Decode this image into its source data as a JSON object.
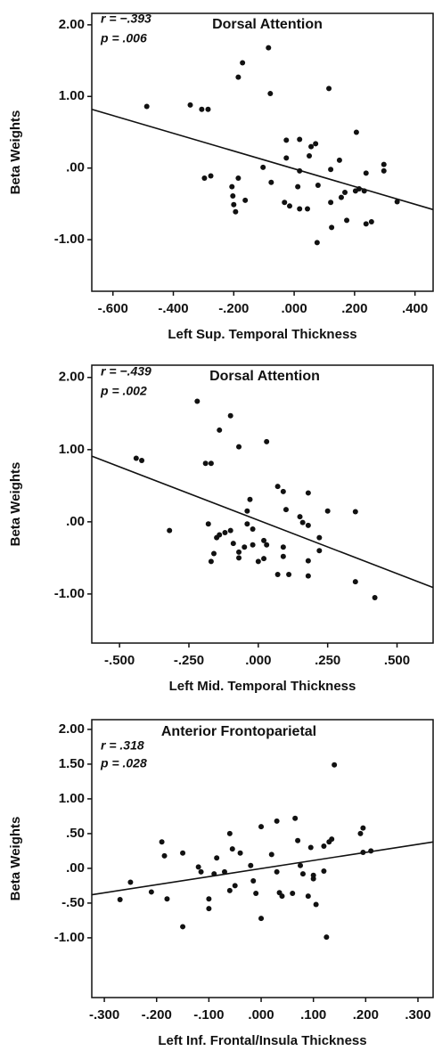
{
  "chart_data": [
    {
      "type": "scatter",
      "title": "Dorsal Attention",
      "annotations": [
        "r = −.393",
        "p = .006"
      ],
      "xlabel": "Left Sup. Temporal Thickness",
      "ylabel": "Beta Weights",
      "color": "#111111",
      "xlim": [
        -0.67,
        0.46
      ],
      "ylim": [
        -1.72,
        2.16
      ],
      "xticks": [
        {
          "value": -0.6,
          "label": "-.600"
        },
        {
          "value": -0.4,
          "label": "-.400"
        },
        {
          "value": -0.2,
          "label": "-.200"
        },
        {
          "value": 0,
          "label": ".000"
        },
        {
          "value": 0.2,
          "label": ".200"
        },
        {
          "value": 0.4,
          "label": ".400"
        }
      ],
      "yticks": [
        {
          "value": -1,
          "label": "-1.00"
        },
        {
          "value": 0,
          "label": ".00"
        },
        {
          "value": 1,
          "label": "1.00"
        },
        {
          "value": 2,
          "label": "2.00"
        }
      ],
      "x": [
        -0.488,
        -0.344,
        -0.306,
        -0.285,
        -0.297,
        -0.276,
        -0.171,
        -0.185,
        -0.185,
        -0.206,
        -0.203,
        -0.2,
        -0.194,
        -0.162,
        -0.085,
        -0.079,
        -0.103,
        -0.076,
        -0.026,
        -0.026,
        -0.032,
        -0.015,
        0.018,
        0.018,
        0.012,
        0.018,
        0.044,
        0.056,
        0.071,
        0.05,
        0.079,
        0.076,
        0.115,
        0.121,
        0.124,
        0.121,
        0.15,
        0.156,
        0.168,
        0.174,
        0.203,
        0.206,
        0.215,
        0.232,
        0.238,
        0.238,
        0.256,
        0.297,
        0.297,
        0.341
      ],
      "y": [
        0.86,
        0.88,
        0.82,
        0.82,
        -0.14,
        -0.11,
        1.47,
        1.27,
        -0.14,
        -0.26,
        -0.39,
        -0.51,
        -0.61,
        -0.45,
        1.68,
        1.04,
        0.01,
        -0.2,
        0.39,
        0.14,
        -0.48,
        -0.53,
        0.4,
        -0.04,
        -0.26,
        -0.57,
        -0.57,
        0.3,
        0.34,
        0.17,
        -0.24,
        -1.04,
        1.11,
        -0.48,
        -0.83,
        -0.02,
        0.11,
        -0.41,
        -0.34,
        -0.73,
        -0.32,
        0.5,
        -0.29,
        -0.32,
        -0.07,
        -0.78,
        -0.75,
        0.05,
        -0.04,
        -0.47
      ],
      "trend": {
        "x": [
          -0.67,
          0.46
        ],
        "y": [
          0.82,
          -0.58
        ]
      }
    },
    {
      "type": "scatter",
      "title": "Dorsal Attention",
      "annotations": [
        "r = −.439",
        "p = .002"
      ],
      "xlabel": "Left Mid. Temporal Thickness",
      "ylabel": "Beta Weights",
      "color": "#111111",
      "xlim": [
        -0.6,
        0.63
      ],
      "ylim": [
        -1.68,
        2.17
      ],
      "xticks": [
        {
          "value": -0.5,
          "label": "-.500"
        },
        {
          "value": -0.25,
          "label": "-.250"
        },
        {
          "value": 0,
          "label": ".000"
        },
        {
          "value": 0.25,
          "label": ".250"
        },
        {
          "value": 0.5,
          "label": ".500"
        }
      ],
      "yticks": [
        {
          "value": -1,
          "label": "-1.00"
        },
        {
          "value": 0,
          "label": ".00"
        },
        {
          "value": 1,
          "label": "1.00"
        },
        {
          "value": 2,
          "label": "2.00"
        }
      ],
      "x": [
        -0.44,
        -0.42,
        -0.32,
        -0.22,
        -0.19,
        -0.17,
        -0.18,
        -0.14,
        -0.1,
        -0.07,
        -0.17,
        -0.16,
        -0.15,
        -0.14,
        -0.12,
        -0.1,
        -0.09,
        -0.07,
        -0.07,
        -0.05,
        -0.04,
        -0.04,
        -0.03,
        -0.02,
        -0.02,
        0,
        0.02,
        0.02,
        0.03,
        0.03,
        0.07,
        0.09,
        0.1,
        0.09,
        0.09,
        0.11,
        0.07,
        0.15,
        0.16,
        0.18,
        0.18,
        0.18,
        0.18,
        0.22,
        0.25,
        0.22,
        0.35,
        0.35,
        0.42
      ],
      "y": [
        0.88,
        0.85,
        -0.12,
        1.67,
        0.81,
        0.81,
        -0.03,
        1.27,
        1.47,
        1.04,
        -0.55,
        -0.44,
        -0.22,
        -0.18,
        -0.15,
        -0.12,
        -0.3,
        -0.42,
        -0.5,
        -0.35,
        -0.03,
        0.15,
        0.31,
        -0.1,
        -0.32,
        -0.55,
        -0.51,
        -0.26,
        -0.32,
        1.11,
        0.49,
        0.42,
        0.17,
        -0.35,
        -0.48,
        -0.73,
        -0.73,
        0.07,
        -0.01,
        0.4,
        -0.05,
        -0.54,
        -0.75,
        -0.22,
        0.15,
        -0.4,
        0.14,
        -0.83,
        -1.05
      ],
      "trend": {
        "x": [
          -0.6,
          0.63
        ],
        "y": [
          0.91,
          -0.91
        ]
      }
    },
    {
      "type": "scatter",
      "title": "Anterior Frontoparietal",
      "annotations": [
        "r = .318",
        "p = .028"
      ],
      "xlabel": "Left Inf. Frontal/Insula Thickness",
      "ylabel": "Beta Weights",
      "color": "#111111",
      "xlim": [
        -0.324,
        0.329
      ],
      "ylim": [
        -1.86,
        2.14
      ],
      "xticks": [
        {
          "value": -0.3,
          "label": "-.300"
        },
        {
          "value": -0.2,
          "label": "-.200"
        },
        {
          "value": -0.1,
          "label": "-.100"
        },
        {
          "value": 0,
          "label": ".000"
        },
        {
          "value": 0.1,
          "label": ".100"
        },
        {
          "value": 0.2,
          "label": ".200"
        },
        {
          "value": 0.3,
          "label": ".300"
        }
      ],
      "yticks": [
        {
          "value": -1,
          "label": "-1.00"
        },
        {
          "value": -0.5,
          "label": "-.50"
        },
        {
          "value": 0,
          "label": ".00"
        },
        {
          "value": 0.5,
          "label": ".50"
        },
        {
          "value": 1,
          "label": "1.00"
        },
        {
          "value": 1.5,
          "label": "1.50"
        },
        {
          "value": 2,
          "label": "2.00"
        }
      ],
      "x": [
        -0.27,
        -0.25,
        -0.21,
        -0.19,
        -0.185,
        -0.18,
        -0.15,
        -0.15,
        -0.12,
        -0.115,
        -0.1,
        -0.1,
        -0.09,
        -0.085,
        -0.07,
        -0.06,
        -0.055,
        -0.06,
        -0.05,
        -0.04,
        -0.02,
        -0.015,
        -0.01,
        0,
        0,
        0.02,
        0.03,
        0.03,
        0.035,
        0.04,
        0.06,
        0.065,
        0.07,
        0.075,
        0.08,
        0.09,
        0.095,
        0.1,
        0.105,
        0.12,
        0.12,
        0.125,
        0.13,
        0.135,
        0.14,
        0.19,
        0.195,
        0.195,
        0.21,
        0.1
      ],
      "y": [
        -0.45,
        -0.2,
        -0.34,
        0.38,
        0.18,
        -0.44,
        0.22,
        -0.84,
        0.02,
        -0.05,
        -0.44,
        -0.58,
        -0.08,
        0.15,
        -0.05,
        0.5,
        0.28,
        -0.32,
        -0.25,
        0.22,
        0.04,
        -0.18,
        -0.36,
        0.6,
        -0.72,
        0.2,
        0.68,
        -0.05,
        -0.35,
        -0.4,
        -0.36,
        0.72,
        0.4,
        0.04,
        -0.08,
        -0.4,
        0.3,
        -0.15,
        -0.52,
        0.32,
        -0.04,
        -0.99,
        0.38,
        0.42,
        1.49,
        0.5,
        0.58,
        0.23,
        0.25,
        -0.1
      ],
      "trend": {
        "x": [
          -0.324,
          0.329
        ],
        "y": [
          -0.38,
          0.38
        ]
      }
    }
  ]
}
